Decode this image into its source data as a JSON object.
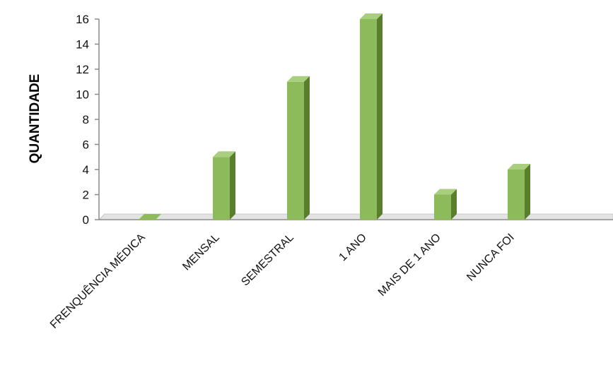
{
  "chart_data": {
    "type": "bar",
    "categories": [
      "FRENQUÊNCIA MÉDICA",
      "MENSAL",
      "SEMESTRAL",
      "1 ANO",
      "MAIS DE 1 ANO",
      "NUNCA FOI"
    ],
    "values": [
      0,
      5,
      11,
      16,
      2,
      4
    ],
    "title": "",
    "xlabel": "",
    "ylabel": "QUANTIDADE",
    "ylim": [
      0,
      16
    ],
    "yticks": [
      0,
      2,
      4,
      6,
      8,
      10,
      12,
      14,
      16
    ],
    "grid": false,
    "legend": "none",
    "colors": {
      "bar_front": "#8dbb5c",
      "bar_side": "#5a7f2c",
      "bar_top": "#a9cf7e",
      "floor": "#c8c8c8",
      "axis": "#8a8a8a"
    }
  }
}
